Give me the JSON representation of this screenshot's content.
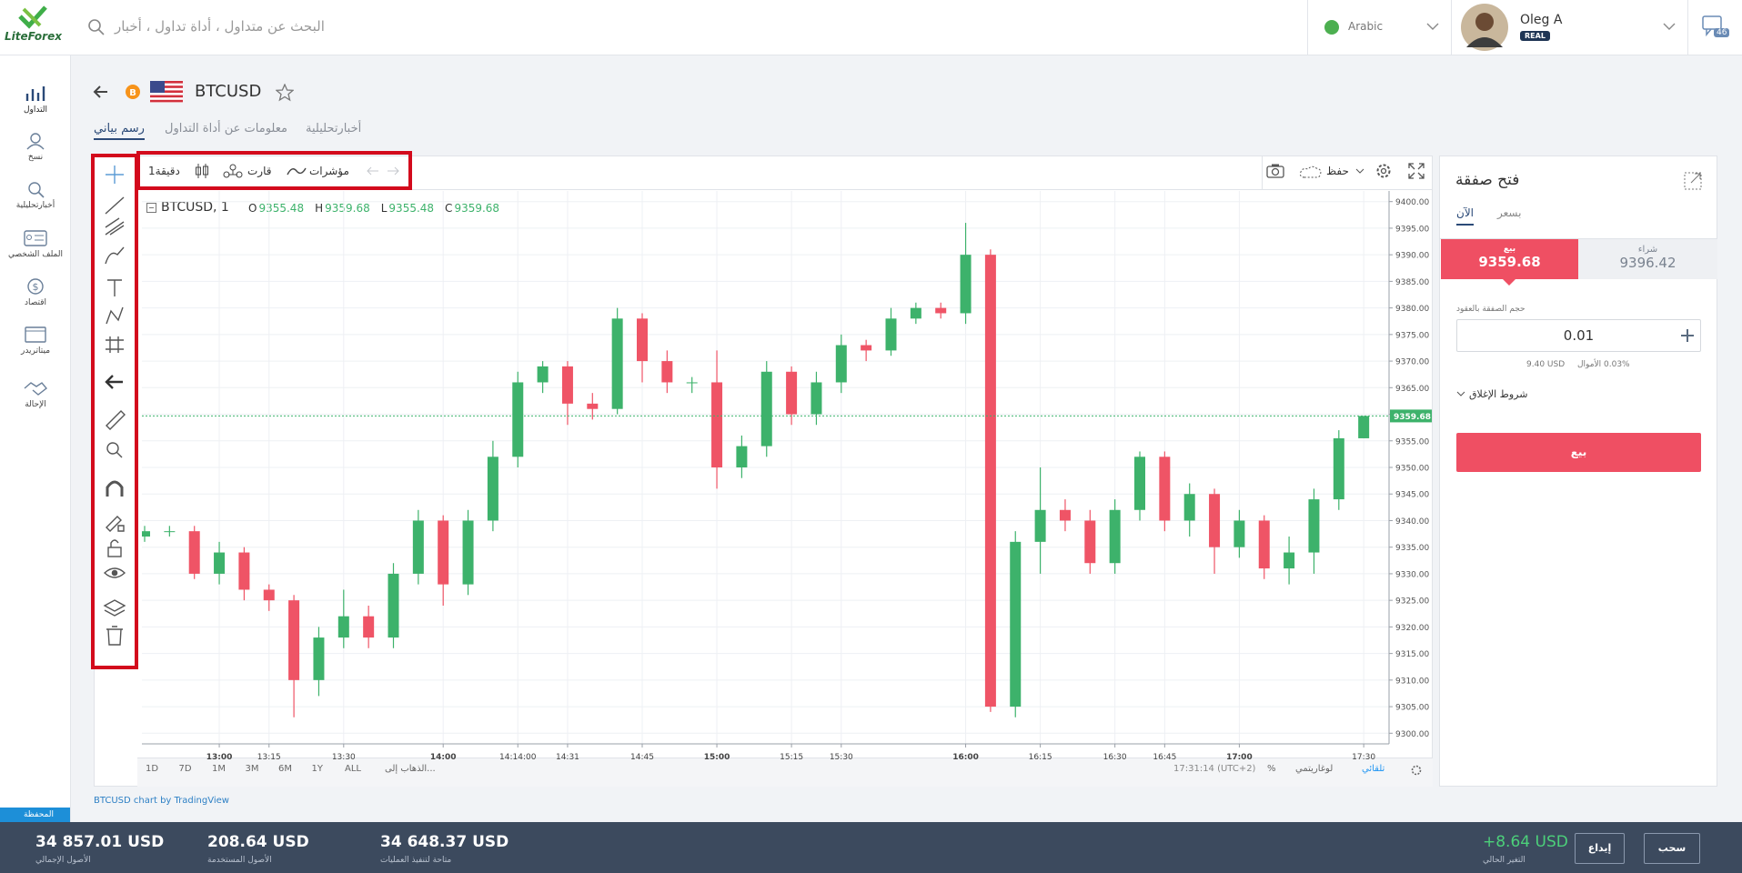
{
  "header": {
    "logo": "LiteForex",
    "search_placeholder": "البحث عن متداول ، أداة تداول ، أخبار",
    "language": "Arabic",
    "user_name": "Oleg A",
    "account_badge": "REAL",
    "messages_count": "46"
  },
  "sidebar": [
    "التداول",
    "نسخ",
    "أخبارتحليلية",
    "الملف الشخصي",
    "اقتصاد",
    "ميتاتريدر",
    "الإحالة"
  ],
  "instrument": {
    "coin_badge": "B",
    "symbol": "BTCUSD"
  },
  "tabs": [
    "رسم بياني",
    "معلومات عن أداة التداول",
    "أخبارتحليلية"
  ],
  "toolbar": {
    "interval": "دقيقة1",
    "chart_type": "قارت",
    "indicators": "مؤشرات",
    "save": "حفظ"
  },
  "chart": {
    "type": "candlestick",
    "legend_title": "BTCUSD, 1",
    "ohlc_legend": [
      {
        "key": "O",
        "value": "9355.48"
      },
      {
        "key": "H",
        "value": "9359.68"
      },
      {
        "key": "L",
        "value": "9355.48"
      },
      {
        "key": "C",
        "value": "9359.68"
      }
    ],
    "up_color": "#3db26b",
    "down_color": "#ef5466",
    "x": [
      null,
      null,
      null,
      "13:00",
      null,
      "13:15",
      null,
      null,
      "13:30",
      null,
      null,
      null,
      "14:00",
      null,
      null,
      "14:14:00",
      null,
      "14:31",
      null,
      null,
      "14:45",
      null,
      null,
      "15:00",
      null,
      null,
      "15:15",
      null,
      "15:30",
      null,
      null,
      null,
      null,
      "16:00",
      null,
      null,
      "16:15",
      null,
      null,
      "16:30",
      null,
      "16:45",
      null,
      null,
      "17:00",
      null,
      null,
      null,
      null,
      "17:30"
    ],
    "candles": [
      [
        9337,
        9339,
        9336,
        9338
      ],
      [
        9338,
        9339,
        9337,
        9338
      ],
      [
        9338,
        9339,
        9329,
        9330
      ],
      [
        9330,
        9336,
        9328,
        9334
      ],
      [
        9334,
        9335,
        9325,
        9327
      ],
      [
        9327,
        9328,
        9323,
        9325
      ],
      [
        9325,
        9326,
        9303,
        9310
      ],
      [
        9310,
        9320,
        9307,
        9318
      ],
      [
        9318,
        9327,
        9316,
        9322
      ],
      [
        9322,
        9324,
        9316,
        9318
      ],
      [
        9318,
        9332,
        9316,
        9330
      ],
      [
        9330,
        9342,
        9328,
        9340
      ],
      [
        9340,
        9341,
        9324,
        9328
      ],
      [
        9328,
        9342,
        9326,
        9340
      ],
      [
        9340,
        9355,
        9338,
        9352
      ],
      [
        9352,
        9368,
        9350,
        9366
      ],
      [
        9366,
        9370,
        9364,
        9369
      ],
      [
        9369,
        9370,
        9358,
        9362
      ],
      [
        9362,
        9364,
        9359,
        9361
      ],
      [
        9361,
        9380,
        9360,
        9378
      ],
      [
        9378,
        9379,
        9366,
        9370
      ],
      [
        9370,
        9372,
        9364,
        9366
      ],
      [
        9366,
        9367,
        9364,
        9366
      ],
      [
        9366,
        9372,
        9346,
        9350
      ],
      [
        9350,
        9356,
        9348,
        9354
      ],
      [
        9354,
        9370,
        9352,
        9368
      ],
      [
        9368,
        9369,
        9358,
        9360
      ],
      [
        9360,
        9368,
        9358,
        9366
      ],
      [
        9366,
        9375,
        9364,
        9373
      ],
      [
        9373,
        9374,
        9370,
        9372
      ],
      [
        9372,
        9380,
        9371,
        9378
      ],
      [
        9378,
        9381,
        9377,
        9380
      ],
      [
        9380,
        9381,
        9378,
        9379
      ],
      [
        9379,
        9396,
        9377,
        9390
      ],
      [
        9390,
        9391,
        9304,
        9305
      ],
      [
        9305,
        9338,
        9303,
        9336
      ],
      [
        9336,
        9350,
        9330,
        9342
      ],
      [
        9342,
        9344,
        9338,
        9340
      ],
      [
        9340,
        9342,
        9330,
        9332
      ],
      [
        9332,
        9344,
        9330,
        9342
      ],
      [
        9342,
        9353,
        9340,
        9352
      ],
      [
        9352,
        9353,
        9338,
        9340
      ],
      [
        9340,
        9347,
        9337,
        9345
      ],
      [
        9345,
        9346,
        9330,
        9335
      ],
      [
        9335,
        9342,
        9333,
        9340
      ],
      [
        9340,
        9341,
        9329,
        9331
      ],
      [
        9331,
        9337,
        9328,
        9334
      ],
      [
        9334,
        9346,
        9330,
        9344
      ],
      [
        9344,
        9357,
        9342,
        9355.48
      ],
      [
        9355.48,
        9359.68,
        9355.48,
        9359.68
      ]
    ],
    "last_price": 9359.68,
    "ylim": [
      9298,
      9402
    ],
    "yticks": [
      {
        "value": 9300,
        "label": "9300.00"
      },
      {
        "value": 9305,
        "label": "9305.00"
      },
      {
        "value": 9310,
        "label": "9310.00"
      },
      {
        "value": 9315,
        "label": "9315.00"
      },
      {
        "value": 9320,
        "label": "9320.00"
      },
      {
        "value": 9325,
        "label": "9325.00"
      },
      {
        "value": 9330,
        "label": "9330.00"
      },
      {
        "value": 9335,
        "label": "9335.00"
      },
      {
        "value": 9340,
        "label": "9340.00"
      },
      {
        "value": 9345,
        "label": "9345.00"
      },
      {
        "value": 9350,
        "label": "9350.00"
      },
      {
        "value": 9355,
        "label": "9355.00"
      },
      {
        "value": 9360,
        "label": "9360.00"
      },
      {
        "value": 9365,
        "label": "9365.00"
      },
      {
        "value": 9370,
        "label": "9370.00"
      },
      {
        "value": 9375,
        "label": "9375.00"
      },
      {
        "value": 9380,
        "label": "9380.00"
      },
      {
        "value": 9385,
        "label": "9385.00"
      },
      {
        "value": 9390,
        "label": "9390.00"
      },
      {
        "value": 9395,
        "label": "9395.00"
      },
      {
        "value": 9400,
        "label": "9400.00"
      }
    ],
    "grid": true
  },
  "range_bar": {
    "ranges": [
      "1D",
      "7D",
      "1M",
      "3M",
      "6M",
      "1Y",
      "ALL"
    ],
    "goto": "الذهاب إلى...",
    "clock": "17:31:14 (UTC+2)",
    "percent": "%",
    "log": "لوغاريتمي",
    "auto": "تلقائي"
  },
  "credit": "BTCUSD chart by TradingView",
  "trade_panel": {
    "title": "فتح صفقة",
    "tab_now": "الآن",
    "tab_price": "بسعر",
    "sell_label": "بيع",
    "sell_price": "9359.68",
    "buy_label": "شراء",
    "buy_price": "9396.42",
    "volume_label": "حجم الصفقة بالعقود",
    "volume": "0.01",
    "margin": "9.40 USD",
    "funds": "0.03% الأموال",
    "close_conditions": "شروط الإغلاق",
    "submit": "بيع"
  },
  "footer": {
    "portfolio": "المحفظة",
    "stats": [
      {
        "value": "34 857.01 USD",
        "label": "الأصول الإجمالي"
      },
      {
        "value": "208.64 USD",
        "label": "الأصول المستخدمة"
      },
      {
        "value": "34 648.37 USD",
        "label": "متاحة لتنفيذ العمليات"
      }
    ],
    "pnl": {
      "value": "+8.64 USD",
      "label": "التغير الحالي"
    },
    "deposit": "إيداع",
    "withdraw": "سحب"
  }
}
